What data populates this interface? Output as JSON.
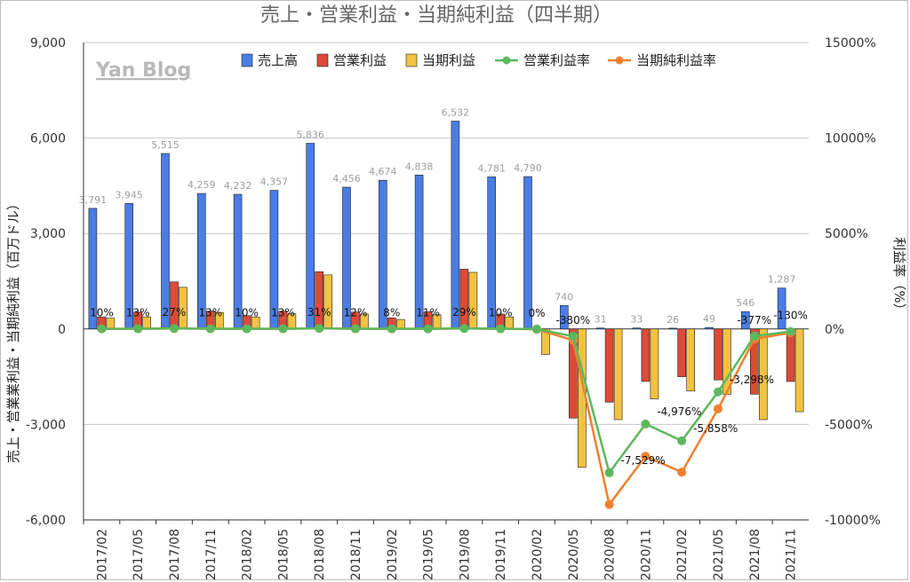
{
  "chart_data": {
    "type": "bar",
    "title": "売上・営業利益・当期純利益（四半期）",
    "watermark": "Yan Blog",
    "ylabel": "売上・営業業利益・当期純利益（百万ドル）",
    "y2label": "利益率（%）",
    "ylim": [
      -6000,
      9000
    ],
    "y2lim": [
      -10000,
      15000
    ],
    "yticks": [
      "9,000",
      "6,000",
      "3,000",
      "0",
      "-3,000",
      "-6,000"
    ],
    "y2ticks": [
      "15000%",
      "10000%",
      "5000%",
      "0%",
      "-5000%",
      "-10000%"
    ],
    "legend_position": "top-right",
    "categories": [
      "2017/02",
      "2017/05",
      "2017/08",
      "2017/11",
      "2018/02",
      "2018/05",
      "2018/08",
      "2018/11",
      "2019/02",
      "2019/05",
      "2019/08",
      "2019/11",
      "2020/02",
      "2020/05",
      "2020/08",
      "2020/11",
      "2021/02",
      "2021/05",
      "2021/08",
      "2021/11"
    ],
    "series": [
      {
        "name": "売上高",
        "kind": "bar",
        "axis": "left",
        "color": "#4a7de4",
        "values": [
          3791,
          3945,
          5515,
          4259,
          4232,
          4357,
          5836,
          4456,
          4674,
          4838,
          6532,
          4781,
          4790,
          740,
          31,
          33,
          26,
          49,
          546,
          1287
        ],
        "labels": [
          "3,791",
          "3,945",
          "5,515",
          "4,259",
          "4,232",
          "4,357",
          "5,836",
          "4,456",
          "4,674",
          "4,838",
          "6,532",
          "4,781",
          "4,790",
          "740",
          "31",
          "33",
          "26",
          "49",
          "546",
          "1,287"
        ]
      },
      {
        "name": "営業利益",
        "kind": "bar",
        "axis": "left",
        "color": "#dc4a38",
        "values": [
          380,
          530,
          1480,
          560,
          420,
          560,
          1800,
          530,
          350,
          540,
          1880,
          470,
          0,
          -2800,
          -2300,
          -1650,
          -1500,
          -1600,
          -2050,
          -1650
        ]
      },
      {
        "name": "当期利益",
        "kind": "bar",
        "axis": "left",
        "color": "#f2c242",
        "values": [
          340,
          380,
          1310,
          520,
          380,
          480,
          1700,
          470,
          300,
          450,
          1780,
          380,
          -800,
          -4350,
          -2850,
          -2200,
          -1950,
          -2050,
          -2850,
          -2600
        ]
      },
      {
        "name": "営業利益率",
        "kind": "line",
        "axis": "right",
        "color": "#5cb85c",
        "values": [
          10,
          13,
          27,
          13,
          10,
          13,
          31,
          12,
          8,
          11,
          29,
          10,
          0,
          -380,
          -7529,
          -4976,
          -5858,
          -3298,
          -377,
          -130
        ],
        "labels": [
          "10%",
          "13%",
          "27%",
          "13%",
          "10%",
          "13%",
          "31%",
          "12%",
          "8%",
          "11%",
          "29%",
          "10%",
          "0%",
          "-380%",
          "-7,529%",
          "-4,976%",
          "-5,858%",
          "-3,298%",
          "-377%",
          "-130%"
        ]
      },
      {
        "name": "当期純利益率",
        "kind": "line",
        "axis": "right",
        "color": "#f07f30",
        "values": [
          9,
          10,
          24,
          12,
          9,
          11,
          29,
          11,
          6,
          9,
          27,
          8,
          -17,
          -588,
          -9194,
          -6667,
          -7500,
          -4184,
          -522,
          -202
        ]
      }
    ]
  }
}
